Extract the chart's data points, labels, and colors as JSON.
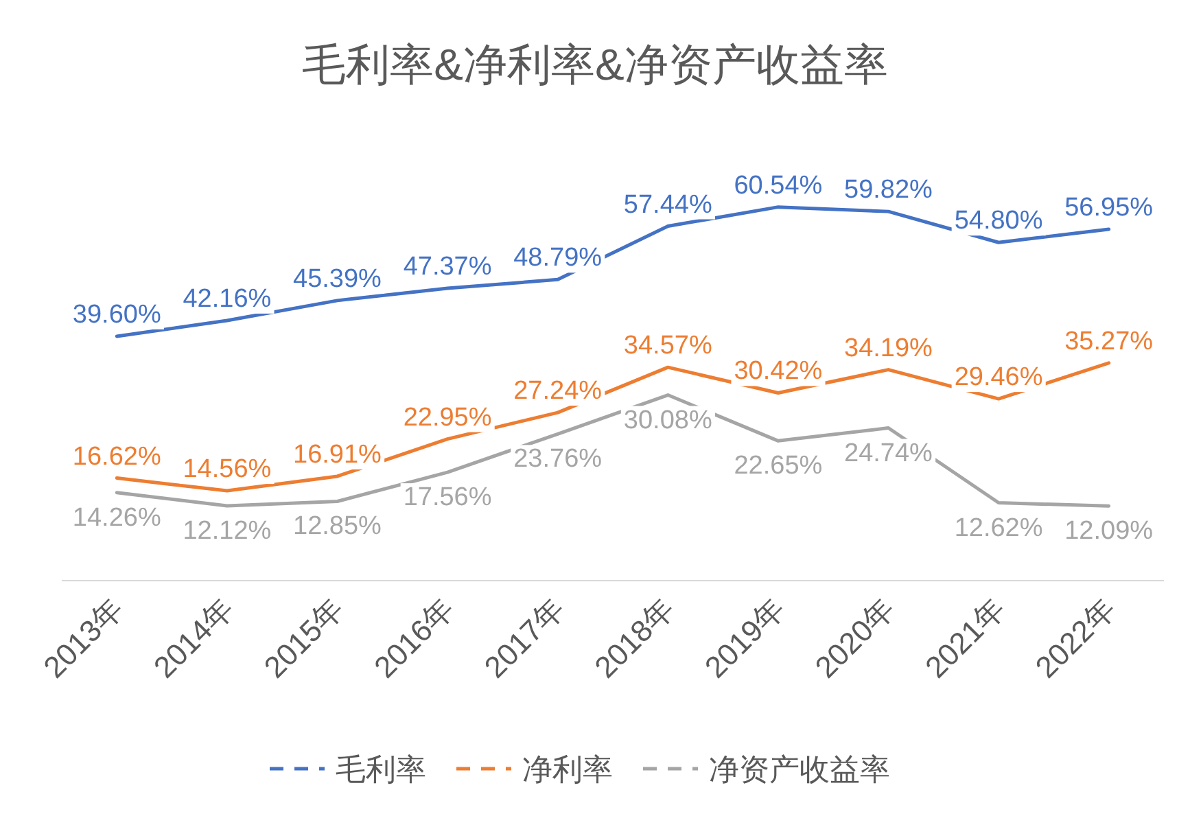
{
  "chart_data": {
    "type": "line",
    "title": "毛利率&净利率&净资产收益率",
    "categories": [
      "2013年",
      "2014年",
      "2015年",
      "2016年",
      "2017年",
      "2018年",
      "2019年",
      "2020年",
      "2021年",
      "2022年"
    ],
    "series": [
      {
        "name": "毛利率",
        "color": "#4472c4",
        "values": [
          39.6,
          42.16,
          45.39,
          47.37,
          48.79,
          57.44,
          60.54,
          59.82,
          54.8,
          56.95
        ],
        "value_labels": [
          "39.60%",
          "42.16%",
          "45.39%",
          "47.37%",
          "48.79%",
          "57.44%",
          "60.54%",
          "59.82%",
          "54.80%",
          "56.95%"
        ]
      },
      {
        "name": "净利率",
        "color": "#ed7d31",
        "values": [
          16.62,
          14.56,
          16.91,
          22.95,
          27.24,
          34.57,
          30.42,
          34.19,
          29.46,
          35.27
        ],
        "value_labels": [
          "16.62%",
          "14.56%",
          "16.91%",
          "22.95%",
          "27.24%",
          "34.57%",
          "30.42%",
          "34.19%",
          "29.46%",
          "35.27%"
        ]
      },
      {
        "name": "净资产收益率",
        "color": "#a5a5a5",
        "values": [
          14.26,
          12.12,
          12.85,
          17.56,
          23.76,
          30.08,
          22.65,
          24.74,
          12.62,
          12.09
        ],
        "value_labels": [
          "14.26%",
          "12.12%",
          "12.85%",
          "17.56%",
          "23.76%",
          "30.08%",
          "22.65%",
          "24.74%",
          "12.62%",
          "12.09%"
        ]
      }
    ],
    "grid": false,
    "legend": "bottom",
    "line_style": "solid",
    "marker": "none",
    "tick_labels": "x"
  }
}
